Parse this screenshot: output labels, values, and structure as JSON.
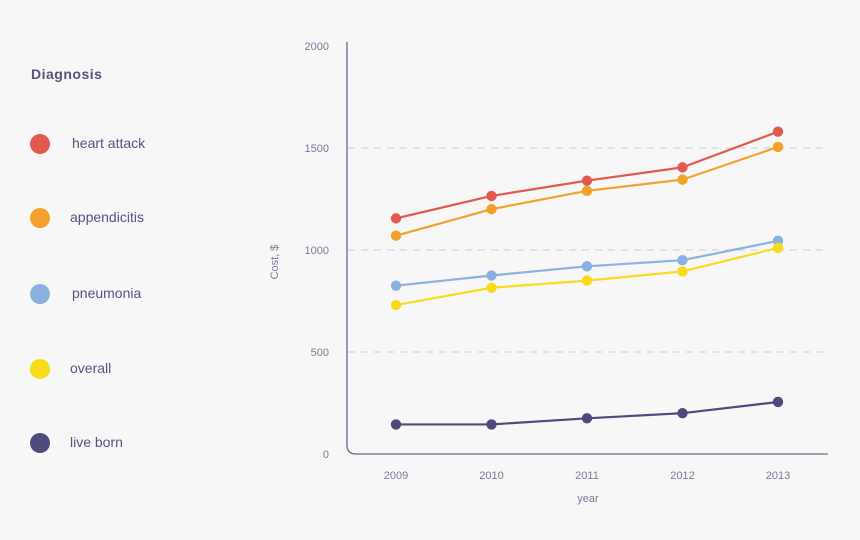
{
  "legend": {
    "title": "Diagnosis",
    "items": [
      {
        "label": "heart attack",
        "color": "#e05a4f"
      },
      {
        "label": "appendicitis",
        "color": "#f3a12a"
      },
      {
        "label": "pneumonia",
        "color": "#8bb2df"
      },
      {
        "label": "overall",
        "color": "#f7dc1c"
      },
      {
        "label": "live born",
        "color": "#4e4a7c"
      }
    ]
  },
  "chart_data": {
    "type": "line",
    "title": "",
    "xlabel": "year",
    "ylabel": "Cost, $",
    "categories": [
      "2009",
      "2010",
      "2011",
      "2012",
      "2013"
    ],
    "ylim": [
      0,
      2000
    ],
    "yticks": [
      0,
      500,
      1000,
      1500,
      2000
    ],
    "grid": "dashed horizontal at 500, 1000, 1500",
    "series": [
      {
        "name": "heart attack",
        "color": "#e05a4f",
        "values": [
          1155,
          1265,
          1340,
          1405,
          1580
        ]
      },
      {
        "name": "appendicitis",
        "color": "#f3a12a",
        "values": [
          1070,
          1200,
          1290,
          1345,
          1505
        ]
      },
      {
        "name": "pneumonia",
        "color": "#8bb2df",
        "values": [
          825,
          875,
          920,
          950,
          1045
        ]
      },
      {
        "name": "overall",
        "color": "#f7dc1c",
        "values": [
          730,
          815,
          850,
          895,
          1010
        ]
      },
      {
        "name": "live born",
        "color": "#4e4a7c",
        "values": [
          145,
          145,
          175,
          200,
          255
        ]
      }
    ]
  }
}
